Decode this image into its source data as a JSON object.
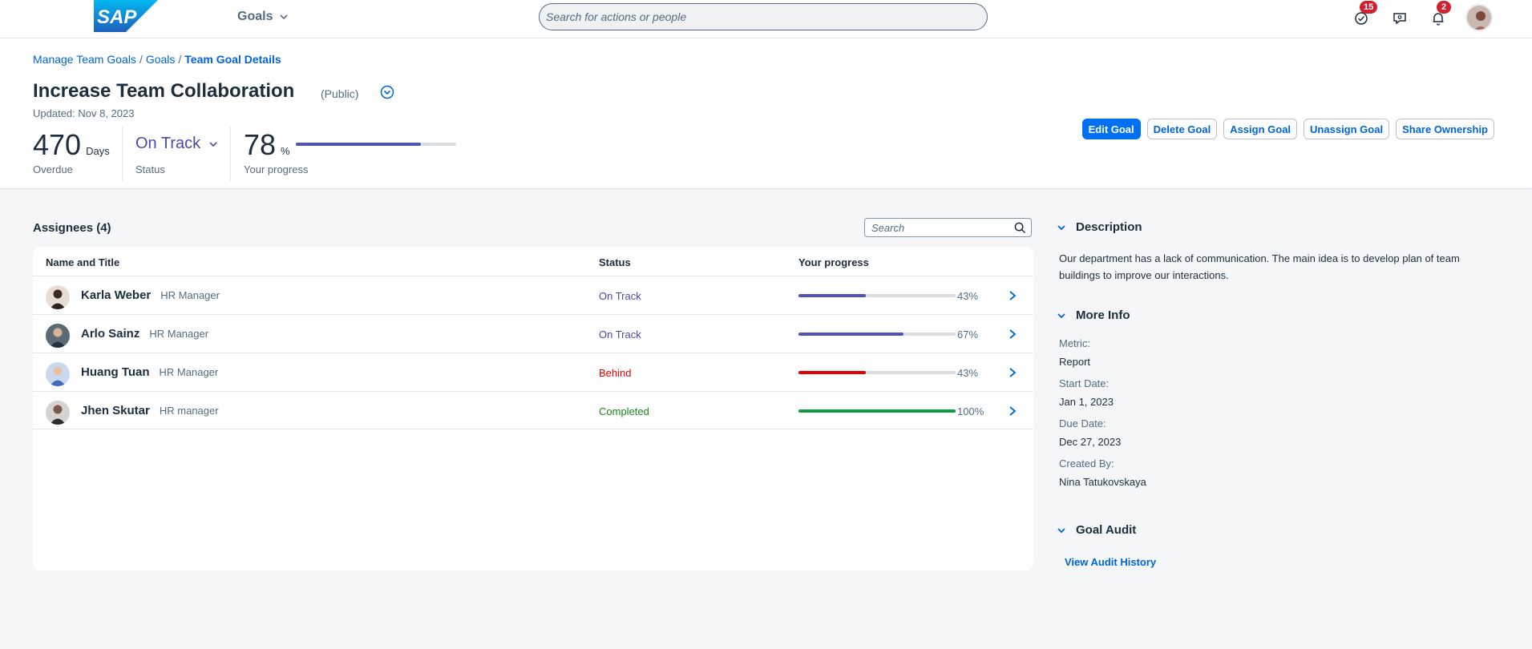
{
  "shell": {
    "logo_text": "SAP",
    "product": "Goals",
    "search_placeholder": "Search for actions or people",
    "tasks_badge": "15",
    "notifications_badge": "2"
  },
  "breadcrumb": {
    "items": [
      "Manage Team Goals",
      "Goals"
    ],
    "current": "Team Goal Details",
    "separator": "/"
  },
  "goal": {
    "title": "Increase Team Collaboration",
    "visibility": "(Public)",
    "updated": "Updated: Nov 8, 2023"
  },
  "kpis": {
    "overdue_value": "470",
    "overdue_unit": "Days",
    "overdue_label": "Overdue",
    "status_value": "On Track",
    "status_label": "Status",
    "progress_value": "78",
    "progress_unit": "%",
    "progress_label": "Your progress",
    "progress_fraction": 0.78
  },
  "actions": {
    "edit": "Edit Goal",
    "delete": "Delete Goal",
    "assign": "Assign Goal",
    "unassign": "Unassign Goal",
    "share": "Share Ownership"
  },
  "assignees": {
    "title": "Assignees (4)",
    "search_placeholder": "Search",
    "columns": {
      "name": "Name and Title",
      "status": "Status",
      "progress": "Your progress"
    },
    "rows": [
      {
        "name": "Karla Weber",
        "role": "HR Manager",
        "status": "On Track",
        "status_color": "#4a4aa8",
        "progress": 0.43,
        "progress_label": "43%",
        "bar_color": "#5052b5"
      },
      {
        "name": "Arlo Sainz",
        "role": "HR Manager",
        "status": "On Track",
        "status_color": "#4a4aa8",
        "progress": 0.67,
        "progress_label": "67%",
        "bar_color": "#5052b5"
      },
      {
        "name": "Huang Tuan",
        "role": "HR Manager",
        "status": "Behind",
        "status_color": "#e20000",
        "progress": 0.43,
        "progress_label": "43%",
        "bar_color": "#e20000"
      },
      {
        "name": "Jhen Skutar",
        "role": "HR manager",
        "status": "Completed",
        "status_color": "#188918",
        "progress": 1.0,
        "progress_label": "100%",
        "bar_color": "#0f9a46"
      }
    ]
  },
  "description": {
    "title": "Description",
    "text": "Our department has a lack of communication. The main idea is to develop plan of team buildings to improve our interactions."
  },
  "more_info": {
    "title": "More Info",
    "metric_label": "Metric:",
    "metric_value": "Report",
    "start_label": "Start Date:",
    "start_value": "Jan 1, 2023",
    "due_label": "Due Date:",
    "due_value": "Dec 27, 2023",
    "created_label": "Created By:",
    "created_value": "Nina Tatukovskaya"
  },
  "audit": {
    "title": "Goal Audit",
    "link": "View Audit History"
  }
}
